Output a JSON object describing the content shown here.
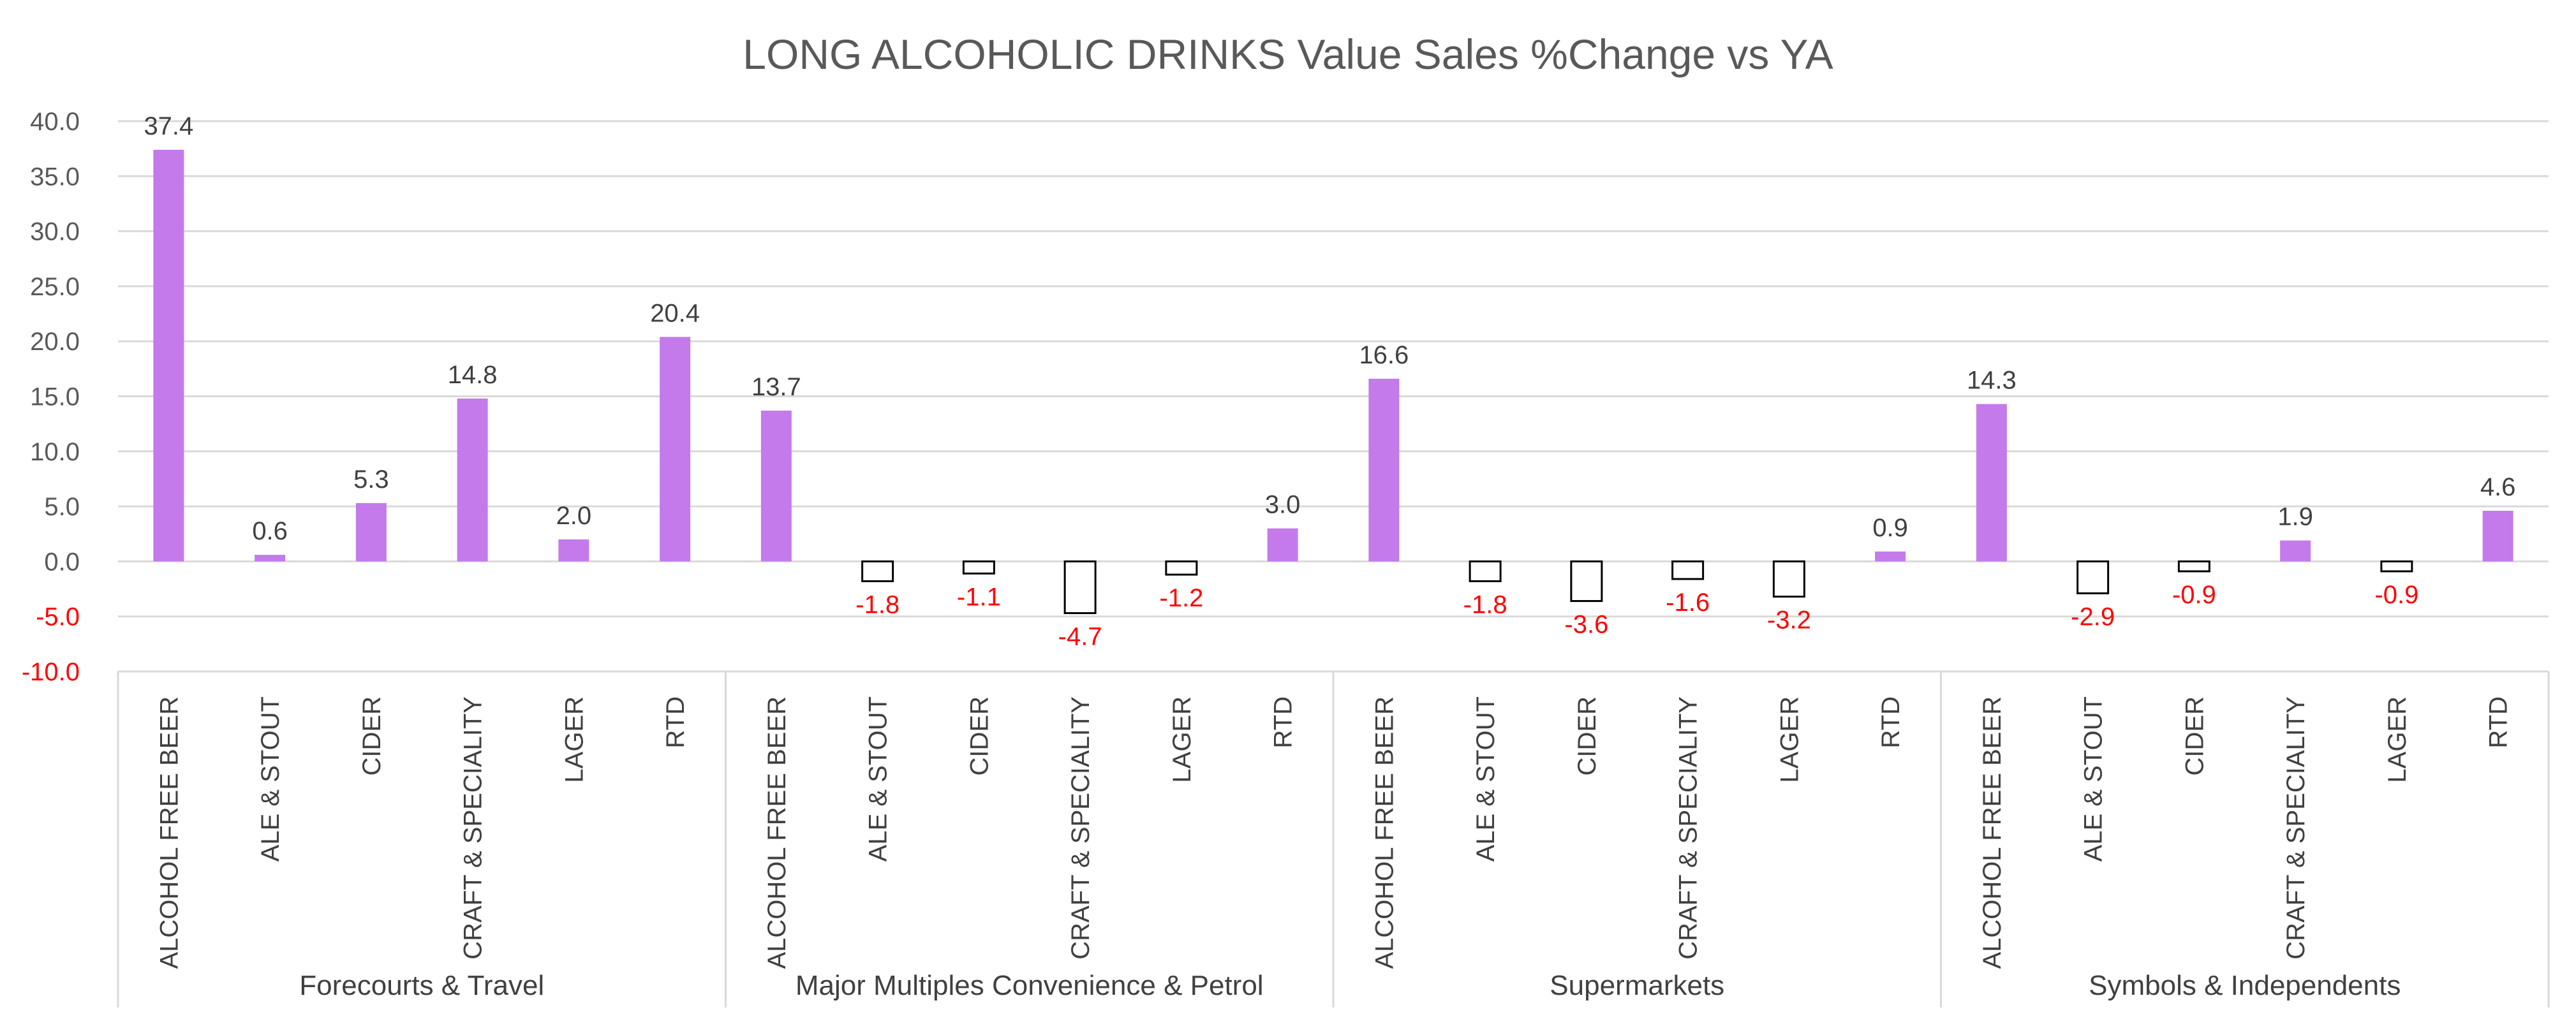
{
  "chart_data": {
    "type": "bar",
    "title": "LONG ALCOHOLIC DRINKS Value Sales %Change vs YA",
    "xlabel": "",
    "ylabel": "",
    "ylim": [
      -10,
      40
    ],
    "y_ticks": [
      "40.0",
      "35.0",
      "30.0",
      "25.0",
      "20.0",
      "15.0",
      "10.0",
      "5.0",
      "0.0",
      "-5.0",
      "-10.0"
    ],
    "y_tick_values": [
      40,
      35,
      30,
      25,
      20,
      15,
      10,
      5,
      0,
      -5,
      -10
    ],
    "grid": true,
    "legend": "none",
    "colors": {
      "positive_fill": "#C47AEB",
      "negative_fill": "#FFFFFF",
      "negative_stroke": "#000000",
      "negative_label": "#FF0000",
      "positive_label": "#404040",
      "axis_text": "#595959",
      "gridline": "#D9D9D9"
    },
    "groups": [
      {
        "name": "Forecourts & Travel",
        "categories": [
          "ALCOHOL FREE BEER",
          "ALE & STOUT",
          "CIDER",
          "CRAFT & SPECIALITY",
          "LAGER",
          "RTD"
        ],
        "values": [
          37.4,
          0.6,
          5.3,
          14.8,
          2.0,
          20.4
        ],
        "labels": [
          "37.4",
          "0.6",
          "5.3",
          "14.8",
          "2.0",
          "20.4"
        ]
      },
      {
        "name": "Major Multiples Convenience & Petrol",
        "categories": [
          "ALCOHOL FREE BEER",
          "ALE & STOUT",
          "CIDER",
          "CRAFT & SPECIALITY",
          "LAGER",
          "RTD"
        ],
        "values": [
          13.7,
          -1.8,
          -1.1,
          -4.7,
          -1.2,
          3.0
        ],
        "labels": [
          "13.7",
          "-1.8",
          "-1.1",
          "-4.7",
          "-1.2",
          "3.0"
        ]
      },
      {
        "name": "Supermarkets",
        "categories": [
          "ALCOHOL FREE BEER",
          "ALE & STOUT",
          "CIDER",
          "CRAFT & SPECIALITY",
          "LAGER",
          "RTD"
        ],
        "values": [
          16.6,
          -1.8,
          -3.6,
          -1.6,
          -3.2,
          0.9
        ],
        "labels": [
          "16.6",
          "-1.8",
          "-3.6",
          "-1.6",
          "-3.2",
          "0.9"
        ]
      },
      {
        "name": "Symbols & Independents",
        "categories": [
          "ALCOHOL FREE BEER",
          "ALE & STOUT",
          "CIDER",
          "CRAFT & SPECIALITY",
          "LAGER",
          "RTD"
        ],
        "values": [
          14.3,
          -2.9,
          -0.9,
          1.9,
          -0.9,
          4.6
        ],
        "labels": [
          "14.3",
          "-2.9",
          "-0.9",
          "1.9",
          "-0.9",
          "4.6"
        ]
      }
    ]
  }
}
